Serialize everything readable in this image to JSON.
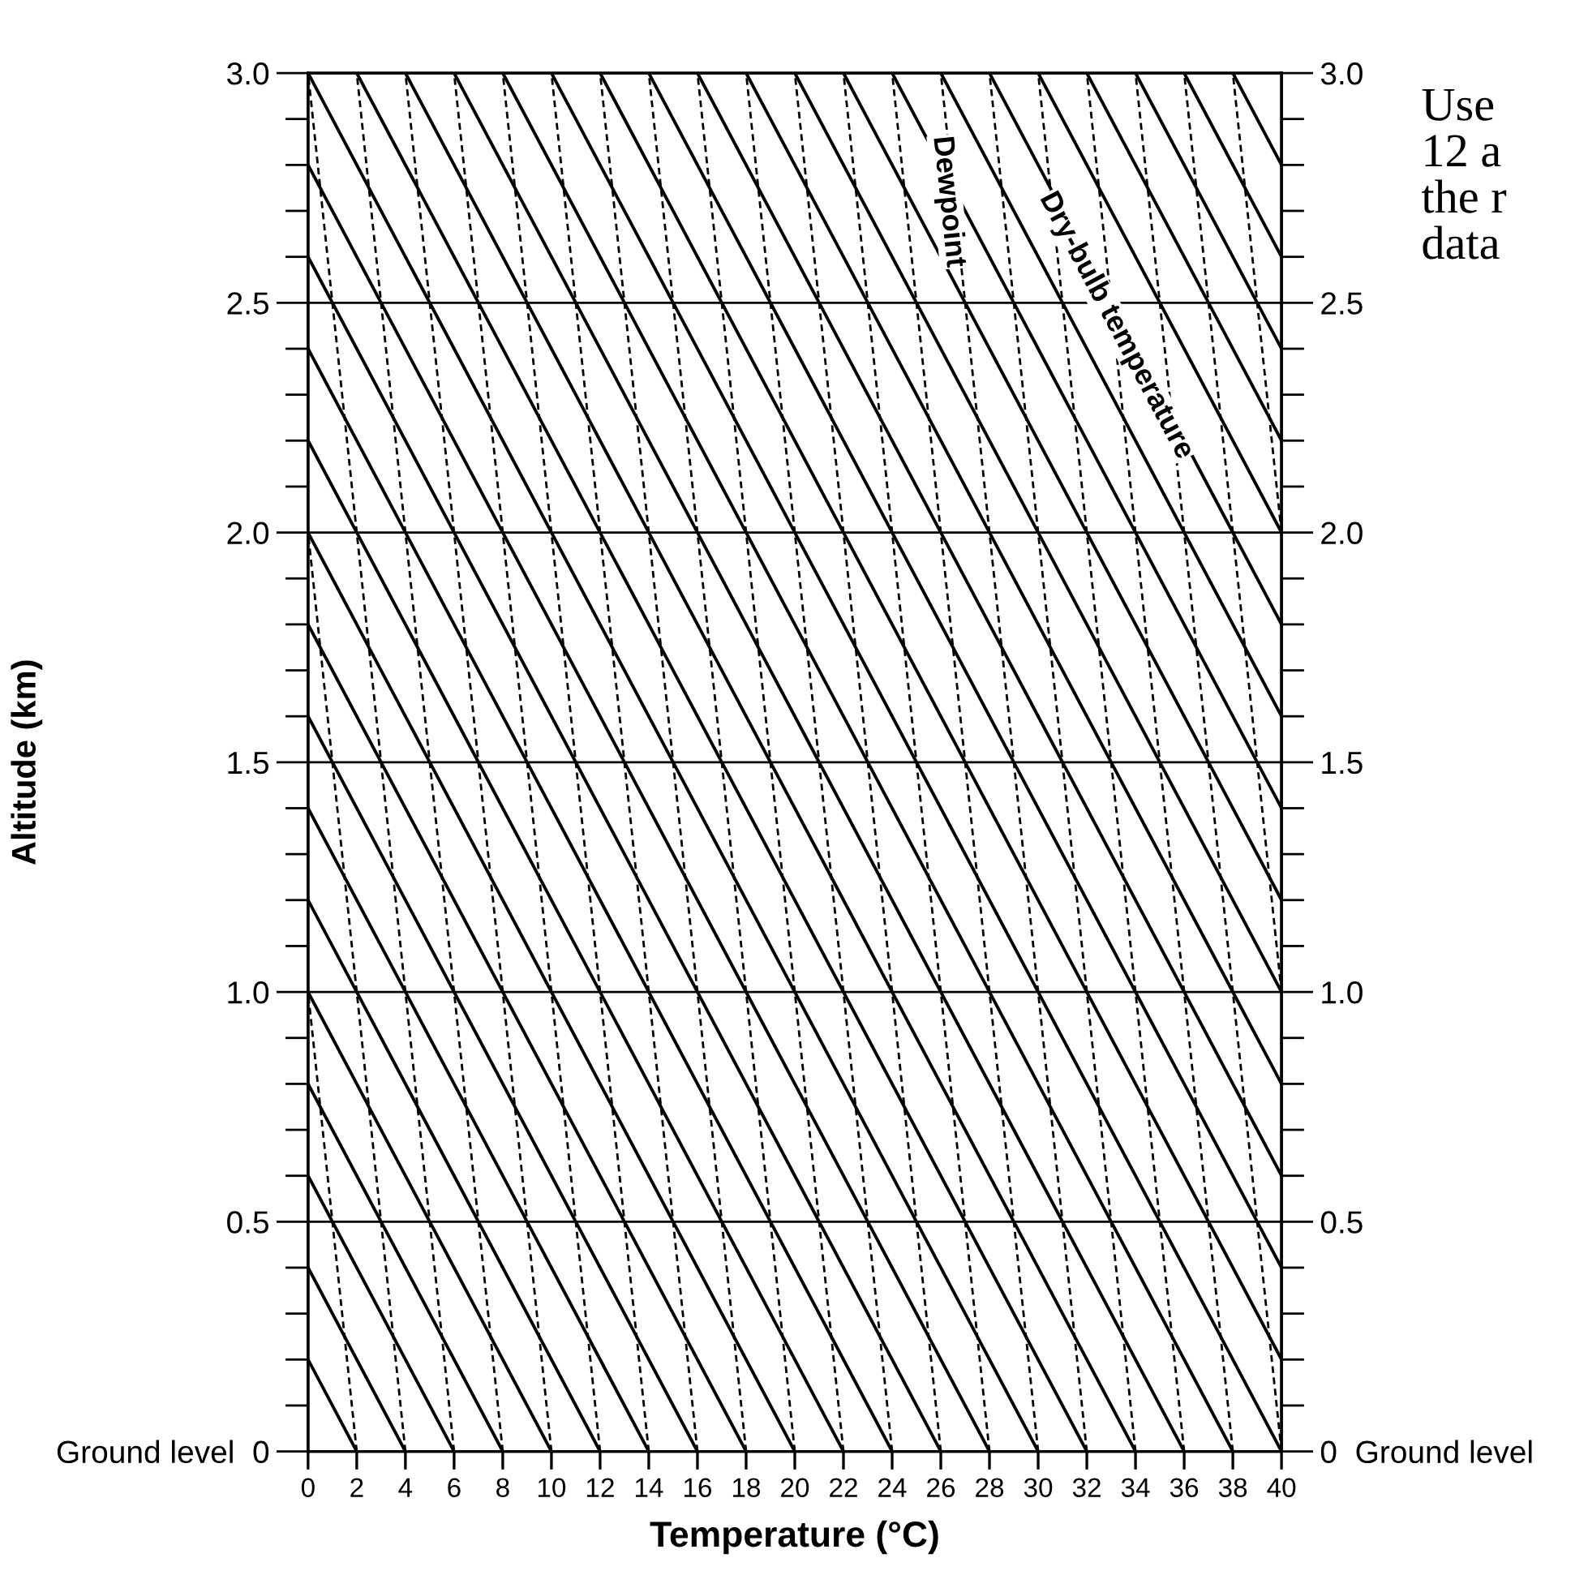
{
  "chart_data": {
    "type": "line",
    "xlabel": "Temperature (°C)",
    "ylabel": "Altitude (km)",
    "xlim": [
      0,
      40
    ],
    "ylim": [
      0,
      3.0
    ],
    "xticks": [
      0,
      2,
      4,
      6,
      8,
      10,
      12,
      14,
      16,
      18,
      20,
      22,
      24,
      26,
      28,
      30,
      32,
      34,
      36,
      38,
      40
    ],
    "yticks": [
      {
        "value": 0,
        "label": "Ground level  0"
      },
      {
        "value": 0.1,
        "label": null
      },
      {
        "value": 0.2,
        "label": null
      },
      {
        "value": 0.3,
        "label": null
      },
      {
        "value": 0.4,
        "label": null
      },
      {
        "value": 0.5,
        "label": "0.5"
      },
      {
        "value": 0.6,
        "label": null
      },
      {
        "value": 0.7,
        "label": null
      },
      {
        "value": 0.8,
        "label": null
      },
      {
        "value": 0.9,
        "label": null
      },
      {
        "value": 1.0,
        "label": "1.0"
      },
      {
        "value": 1.1,
        "label": null
      },
      {
        "value": 1.2,
        "label": null
      },
      {
        "value": 1.3,
        "label": null
      },
      {
        "value": 1.4,
        "label": null
      },
      {
        "value": 1.5,
        "label": "1.5"
      },
      {
        "value": 1.6,
        "label": null
      },
      {
        "value": 1.7,
        "label": null
      },
      {
        "value": 1.8,
        "label": null
      },
      {
        "value": 1.9,
        "label": null
      },
      {
        "value": 2.0,
        "label": "2.0"
      },
      {
        "value": 2.1,
        "label": null
      },
      {
        "value": 2.2,
        "label": null
      },
      {
        "value": 2.3,
        "label": null
      },
      {
        "value": 2.4,
        "label": null
      },
      {
        "value": 2.5,
        "label": "2.5"
      },
      {
        "value": 2.6,
        "label": null
      },
      {
        "value": 2.7,
        "label": null
      },
      {
        "value": 2.8,
        "label": null
      },
      {
        "value": 2.9,
        "label": null
      },
      {
        "value": 3.0,
        "label": "3.0"
      }
    ],
    "y2lim": [
      0,
      3.0
    ],
    "y2ticks": [
      {
        "value": 0,
        "label": "0  Ground level"
      },
      {
        "value": 0.1,
        "label": null
      },
      {
        "value": 0.2,
        "label": null
      },
      {
        "value": 0.3,
        "label": null
      },
      {
        "value": 0.4,
        "label": null
      },
      {
        "value": 0.5,
        "label": "0.5"
      },
      {
        "value": 0.6,
        "label": null
      },
      {
        "value": 0.7,
        "label": null
      },
      {
        "value": 0.8,
        "label": null
      },
      {
        "value": 0.9,
        "label": null
      },
      {
        "value": 1.0,
        "label": "1.0"
      },
      {
        "value": 1.1,
        "label": null
      },
      {
        "value": 1.2,
        "label": null
      },
      {
        "value": 1.3,
        "label": null
      },
      {
        "value": 1.4,
        "label": null
      },
      {
        "value": 1.5,
        "label": "1.5"
      },
      {
        "value": 1.6,
        "label": null
      },
      {
        "value": 1.7,
        "label": null
      },
      {
        "value": 1.8,
        "label": null
      },
      {
        "value": 1.9,
        "label": null
      },
      {
        "value": 2.0,
        "label": "2.0"
      },
      {
        "value": 2.1,
        "label": null
      },
      {
        "value": 2.2,
        "label": null
      },
      {
        "value": 2.3,
        "label": null
      },
      {
        "value": 2.4,
        "label": null
      },
      {
        "value": 2.5,
        "label": "2.5"
      },
      {
        "value": 2.6,
        "label": null
      },
      {
        "value": 2.7,
        "label": null
      },
      {
        "value": 2.8,
        "label": null
      },
      {
        "value": 2.9,
        "label": null
      },
      {
        "value": 3.0,
        "label": "3.0"
      }
    ],
    "ref_lines": [
      {
        "axis": "y",
        "value": 0.5,
        "color": "#000000"
      },
      {
        "axis": "y",
        "value": 1.0,
        "color": "#000000"
      },
      {
        "axis": "y",
        "value": 1.5,
        "color": "#000000"
      },
      {
        "axis": "y",
        "value": 2.0,
        "color": "#000000"
      },
      {
        "axis": "y",
        "value": 2.5,
        "color": "#000000"
      }
    ],
    "annotations": [
      {
        "text": "Dewpoint",
        "x": 26.3,
        "y": 2.72
      },
      {
        "text": "Dry-bulb temperature",
        "x": 33.2,
        "y": 2.45
      },
      "Use\n12 a\nthe r\ndata"
    ],
    "series": [
      {
        "color": "#000000",
        "line_style": "solid",
        "x": [
          0,
          2
        ],
        "values": [
          0.2,
          0
        ]
      },
      {
        "color": "#000000",
        "line_style": "solid",
        "x": [
          0,
          4
        ],
        "values": [
          0.4,
          0
        ]
      },
      {
        "color": "#000000",
        "line_style": "solid",
        "x": [
          0,
          6
        ],
        "values": [
          0.6,
          0
        ]
      },
      {
        "color": "#000000",
        "line_style": "solid",
        "x": [
          0,
          8
        ],
        "values": [
          0.8,
          0
        ]
      },
      {
        "color": "#000000",
        "line_style": "solid",
        "x": [
          0,
          10
        ],
        "values": [
          1.0,
          0
        ]
      },
      {
        "color": "#000000",
        "line_style": "solid",
        "x": [
          0,
          12
        ],
        "values": [
          1.2,
          0
        ]
      },
      {
        "color": "#000000",
        "line_style": "solid",
        "x": [
          0,
          14
        ],
        "values": [
          1.4,
          0
        ]
      },
      {
        "color": "#000000",
        "line_style": "solid",
        "x": [
          0,
          16
        ],
        "values": [
          1.6,
          0
        ]
      },
      {
        "color": "#000000",
        "line_style": "solid",
        "x": [
          0,
          18
        ],
        "values": [
          1.8,
          0
        ]
      },
      {
        "color": "#000000",
        "line_style": "solid",
        "x": [
          0,
          20
        ],
        "values": [
          2.0,
          0
        ]
      },
      {
        "color": "#000000",
        "line_style": "solid",
        "x": [
          0,
          22
        ],
        "values": [
          2.2,
          0
        ]
      },
      {
        "color": "#000000",
        "line_style": "solid",
        "x": [
          0,
          24
        ],
        "values": [
          2.4,
          0
        ]
      },
      {
        "color": "#000000",
        "line_style": "solid",
        "x": [
          0,
          26
        ],
        "values": [
          2.6,
          0
        ]
      },
      {
        "color": "#000000",
        "line_style": "solid",
        "x": [
          0,
          28
        ],
        "values": [
          2.8,
          0
        ]
      },
      {
        "color": "#000000",
        "line_style": "solid",
        "x": [
          0,
          30
        ],
        "values": [
          3.0,
          0
        ]
      },
      {
        "color": "#000000",
        "line_style": "solid",
        "x": [
          2,
          32
        ],
        "values": [
          3.0,
          0
        ]
      },
      {
        "color": "#000000",
        "line_style": "solid",
        "x": [
          4,
          34
        ],
        "values": [
          3.0,
          0
        ]
      },
      {
        "color": "#000000",
        "line_style": "solid",
        "x": [
          6,
          36
        ],
        "values": [
          3.0,
          0
        ]
      },
      {
        "color": "#000000",
        "line_style": "solid",
        "x": [
          8,
          38
        ],
        "values": [
          3.0,
          0
        ]
      },
      {
        "color": "#000000",
        "line_style": "solid",
        "x": [
          10,
          40
        ],
        "values": [
          3.0,
          0
        ]
      },
      {
        "color": "#000000",
        "line_style": "solid",
        "x": [
          12,
          40
        ],
        "values": [
          3.0,
          0.2
        ]
      },
      {
        "color": "#000000",
        "line_style": "solid",
        "x": [
          14,
          40
        ],
        "values": [
          3.0,
          0.4
        ]
      },
      {
        "color": "#000000",
        "line_style": "solid",
        "x": [
          16,
          40
        ],
        "values": [
          3.0,
          0.6
        ]
      },
      {
        "color": "#000000",
        "line_style": "solid",
        "x": [
          18,
          40
        ],
        "values": [
          3.0,
          0.8
        ]
      },
      {
        "color": "#000000",
        "line_style": "solid",
        "x": [
          20,
          40
        ],
        "values": [
          3.0,
          1.0
        ]
      },
      {
        "color": "#000000",
        "line_style": "solid",
        "x": [
          22,
          40
        ],
        "values": [
          3.0,
          1.2
        ]
      },
      {
        "color": "#000000",
        "line_style": "solid",
        "x": [
          24,
          40
        ],
        "values": [
          3.0,
          1.4
        ]
      },
      {
        "color": "#000000",
        "line_style": "solid",
        "x": [
          26,
          40
        ],
        "values": [
          3.0,
          1.6
        ]
      },
      {
        "color": "#000000",
        "line_style": "solid",
        "x": [
          28,
          40
        ],
        "values": [
          3.0,
          1.8
        ]
      },
      {
        "color": "#000000",
        "line_style": "solid",
        "x": [
          30,
          40
        ],
        "values": [
          3.0,
          2.0
        ]
      },
      {
        "color": "#000000",
        "line_style": "solid",
        "x": [
          32,
          40
        ],
        "values": [
          3.0,
          2.2
        ]
      },
      {
        "color": "#000000",
        "line_style": "solid",
        "x": [
          34,
          40
        ],
        "values": [
          3.0,
          2.4
        ]
      },
      {
        "color": "#000000",
        "line_style": "solid",
        "x": [
          36,
          40
        ],
        "values": [
          3.0,
          2.6
        ]
      },
      {
        "color": "#000000",
        "line_style": "solid",
        "x": [
          38,
          40
        ],
        "values": [
          3.0,
          2.8
        ]
      },
      {
        "color": "#000000",
        "line_style": "dashed",
        "x": [
          2,
          0
        ],
        "values": [
          0,
          1.0
        ]
      },
      {
        "color": "#000000",
        "line_style": "dashed",
        "x": [
          4,
          0
        ],
        "values": [
          0,
          2.0
        ]
      },
      {
        "color": "#000000",
        "line_style": "dashed",
        "x": [
          6,
          0
        ],
        "values": [
          0,
          3.0
        ]
      },
      {
        "color": "#000000",
        "line_style": "dashed",
        "x": [
          8,
          2
        ],
        "values": [
          0,
          3.0
        ]
      },
      {
        "color": "#000000",
        "line_style": "dashed",
        "x": [
          10,
          4
        ],
        "values": [
          0,
          3.0
        ]
      },
      {
        "color": "#000000",
        "line_style": "dashed",
        "x": [
          12,
          6
        ],
        "values": [
          0,
          3.0
        ]
      },
      {
        "color": "#000000",
        "line_style": "dashed",
        "x": [
          14,
          8
        ],
        "values": [
          0,
          3.0
        ]
      },
      {
        "color": "#000000",
        "line_style": "dashed",
        "x": [
          16,
          10
        ],
        "values": [
          0,
          3.0
        ]
      },
      {
        "color": "#000000",
        "line_style": "dashed",
        "x": [
          18,
          12
        ],
        "values": [
          0,
          3.0
        ]
      },
      {
        "color": "#000000",
        "line_style": "dashed",
        "x": [
          20,
          14
        ],
        "values": [
          0,
          3.0
        ]
      },
      {
        "color": "#000000",
        "line_style": "dashed",
        "x": [
          22,
          16
        ],
        "values": [
          0,
          3.0
        ]
      },
      {
        "color": "#000000",
        "line_style": "dashed",
        "x": [
          24,
          18
        ],
        "values": [
          0,
          3.0
        ]
      },
      {
        "color": "#000000",
        "line_style": "dashed",
        "x": [
          26,
          20
        ],
        "values": [
          0,
          3.0
        ]
      },
      {
        "color": "#000000",
        "line_style": "dashed",
        "x": [
          28,
          22
        ],
        "values": [
          0,
          3.0
        ]
      },
      {
        "color": "#000000",
        "line_style": "dashed",
        "x": [
          30,
          24
        ],
        "values": [
          0,
          3.0
        ]
      },
      {
        "color": "#000000",
        "line_style": "dashed",
        "x": [
          32,
          26
        ],
        "values": [
          0,
          3.0
        ]
      },
      {
        "color": "#000000",
        "line_style": "dashed",
        "x": [
          34,
          28
        ],
        "values": [
          0,
          3.0
        ]
      },
      {
        "color": "#000000",
        "line_style": "dashed",
        "x": [
          36,
          30
        ],
        "values": [
          0,
          3.0
        ]
      },
      {
        "color": "#000000",
        "line_style": "dashed",
        "x": [
          38,
          32
        ],
        "values": [
          0,
          3.0
        ]
      },
      {
        "color": "#000000",
        "line_style": "dashed",
        "x": [
          40,
          34
        ],
        "values": [
          0,
          3.0
        ]
      },
      {
        "color": "#000000",
        "line_style": "dashed",
        "x": [
          40,
          36
        ],
        "values": [
          1.0,
          3.0
        ]
      },
      {
        "color": "#000000",
        "line_style": "dashed",
        "x": [
          40,
          38
        ],
        "values": [
          2.0,
          3.0
        ]
      }
    ]
  }
}
